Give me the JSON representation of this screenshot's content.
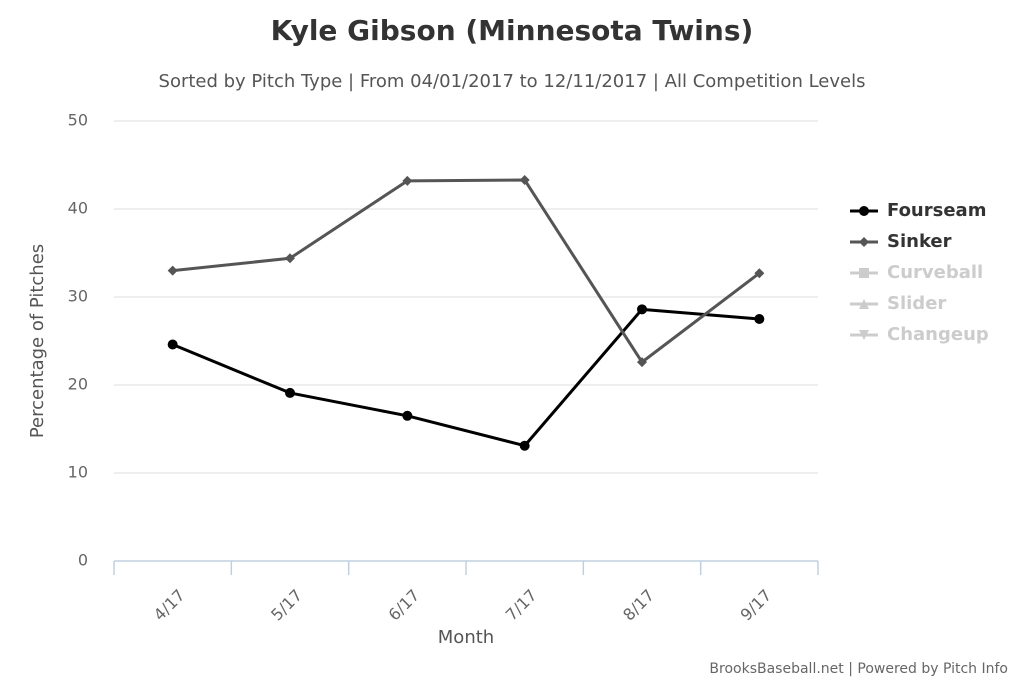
{
  "chart_data": {
    "type": "line",
    "title": "Kyle Gibson (Minnesota Twins)",
    "subtitle": "Sorted by Pitch Type | From 04/01/2017 to 12/11/2017 | All Competition Levels",
    "x_label": "Month",
    "y_label": "Percentage of Pitches",
    "credit": "BrooksBaseball.net | Powered by Pitch Info",
    "categories": [
      "4/17",
      "5/17",
      "6/17",
      "7/17",
      "8/17",
      "9/17"
    ],
    "series": [
      {
        "name": "Fourseam",
        "color": "#000000",
        "marker": "circle",
        "hidden": false,
        "values": [
          24.6,
          19.1,
          16.5,
          13.1,
          28.6,
          27.5
        ]
      },
      {
        "name": "Sinker",
        "color": "#555555",
        "marker": "diamond",
        "hidden": false,
        "values": [
          33.0,
          34.4,
          43.2,
          43.3,
          22.6,
          32.7
        ]
      },
      {
        "name": "Curveball",
        "color": "#cccccc",
        "marker": "square",
        "hidden": true,
        "values": [
          null,
          null,
          null,
          null,
          null,
          null
        ]
      },
      {
        "name": "Slider",
        "color": "#cccccc",
        "marker": "triangle",
        "hidden": true,
        "values": [
          null,
          null,
          null,
          null,
          null,
          null
        ]
      },
      {
        "name": "Changeup",
        "color": "#cccccc",
        "marker": "triangle-down",
        "hidden": true,
        "values": [
          null,
          null,
          null,
          null,
          null,
          null
        ]
      }
    ],
    "ylim": [
      0,
      50
    ],
    "yticks": [
      0,
      10,
      20,
      30,
      40,
      50
    ],
    "grid": true,
    "legend": "right"
  }
}
